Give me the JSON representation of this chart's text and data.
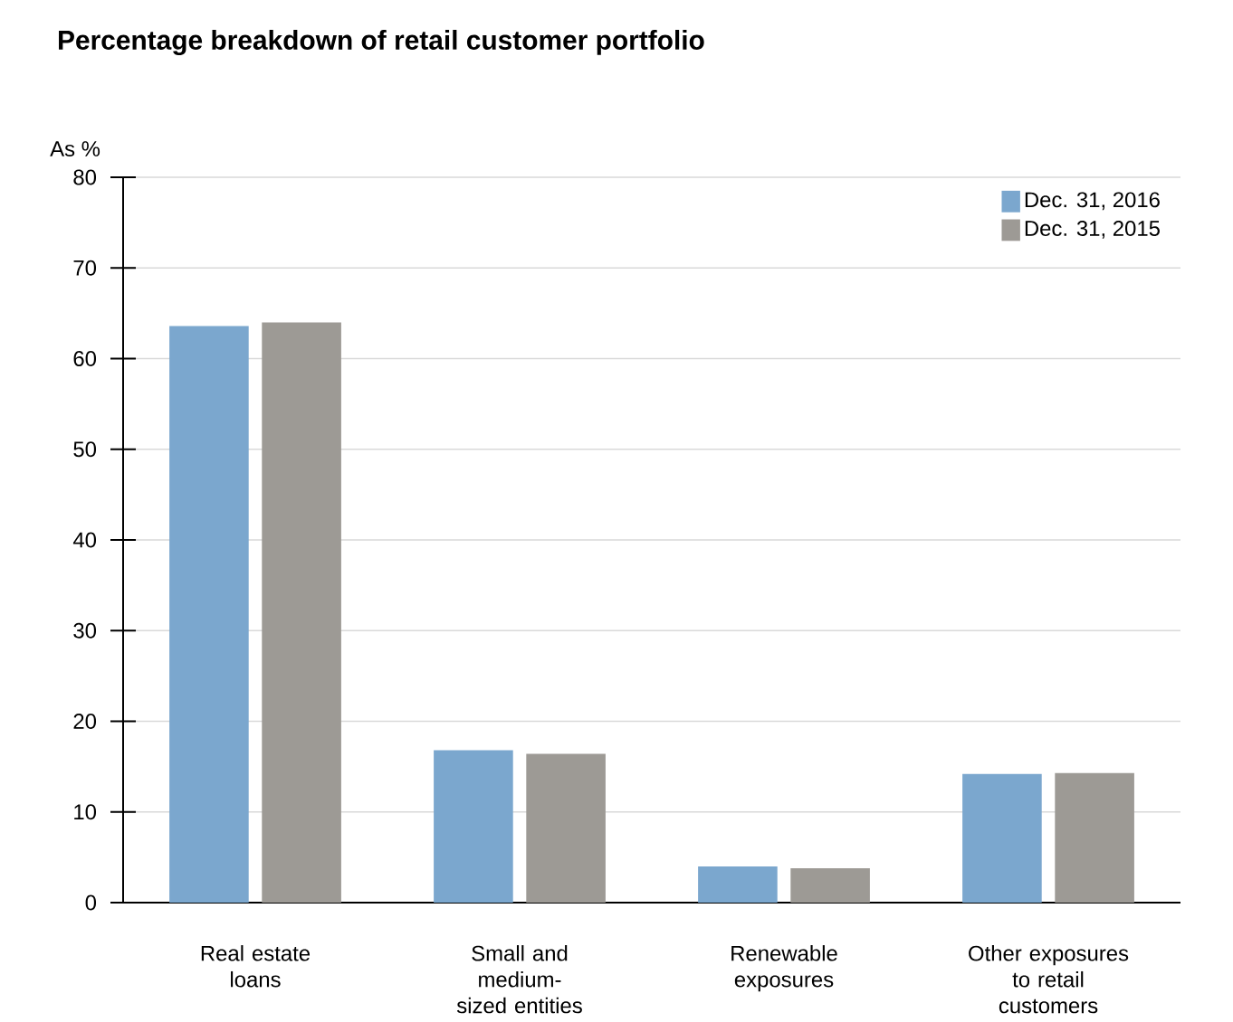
{
  "chart_data": {
    "type": "bar",
    "title": "Percentage breakdown of retail customer portfolio",
    "ylabel": "As %",
    "categories": [
      "Real estate loans",
      "Small and medium-sized entities",
      "Renewable exposures",
      "Other exposures to retail customers"
    ],
    "series": [
      {
        "name": "Dec. 31, 2016",
        "color": "#7ba7ce",
        "values": [
          63.6,
          16.8,
          4.0,
          14.2
        ]
      },
      {
        "name": "Dec. 31, 2015",
        "color": "#9d9a95",
        "values": [
          64.0,
          16.4,
          3.8,
          14.3
        ]
      }
    ],
    "ylim": [
      0,
      80
    ],
    "yticks": [
      0,
      10,
      20,
      30,
      40,
      50,
      60,
      70,
      80
    ],
    "grid": "y",
    "legend": "top right"
  }
}
